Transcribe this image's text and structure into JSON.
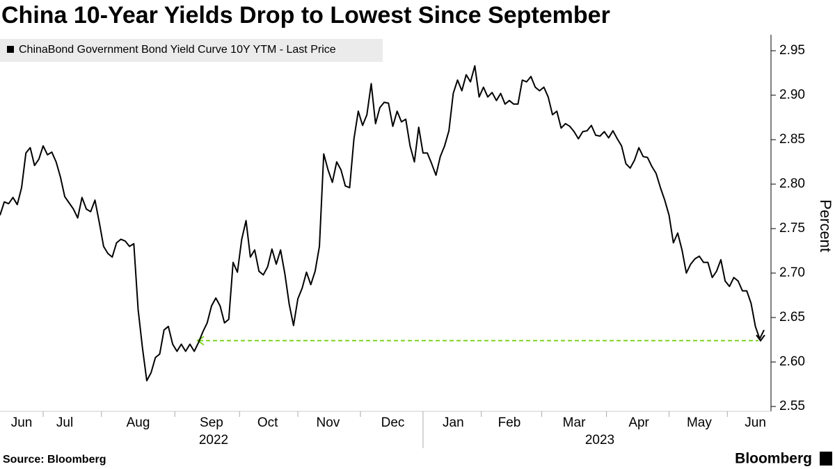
{
  "chart_data": {
    "type": "line",
    "title": "China 10-Year Yields Drop to Lowest Since September",
    "y_label": "Percent",
    "source": "Source: Bloomberg",
    "brand": "Bloomberg",
    "year_labels": [
      "2022",
      "2023"
    ],
    "series": [
      {
        "name": "ChinaBond Government Bond Yield Curve 10Y YTM - Last Price",
        "color": "#000000",
        "values": [
          2.765,
          2.78,
          2.778,
          2.785,
          2.777,
          2.796,
          2.835,
          2.841,
          2.821,
          2.828,
          2.843,
          2.833,
          2.836,
          2.825,
          2.808,
          2.786,
          2.779,
          2.772,
          2.762,
          2.785,
          2.772,
          2.769,
          2.782,
          2.757,
          2.73,
          2.722,
          2.718,
          2.734,
          2.738,
          2.736,
          2.73,
          2.733,
          2.659,
          2.616,
          2.579,
          2.588,
          2.605,
          2.609,
          2.636,
          2.64,
          2.62,
          2.612,
          2.62,
          2.612,
          2.62,
          2.612,
          2.622,
          2.634,
          2.644,
          2.663,
          2.672,
          2.663,
          2.644,
          2.648,
          2.712,
          2.701,
          2.738,
          2.759,
          2.718,
          2.726,
          2.702,
          2.698,
          2.707,
          2.727,
          2.71,
          2.726,
          2.699,
          2.665,
          2.641,
          2.671,
          2.683,
          2.701,
          2.687,
          2.702,
          2.73,
          2.834,
          2.816,
          2.802,
          2.825,
          2.816,
          2.798,
          2.796,
          2.851,
          2.882,
          2.866,
          2.878,
          2.913,
          2.868,
          2.886,
          2.892,
          2.891,
          2.865,
          2.882,
          2.87,
          2.873,
          2.843,
          2.825,
          2.864,
          2.835,
          2.835,
          2.823,
          2.81,
          2.831,
          2.843,
          2.86,
          2.902,
          2.917,
          2.905,
          2.923,
          2.915,
          2.933,
          2.898,
          2.909,
          2.898,
          2.903,
          2.894,
          2.902,
          2.89,
          2.894,
          2.89,
          2.89,
          2.917,
          2.915,
          2.921,
          2.909,
          2.905,
          2.909,
          2.898,
          2.878,
          2.882,
          2.863,
          2.868,
          2.865,
          2.859,
          2.851,
          2.859,
          2.86,
          2.866,
          2.855,
          2.854,
          2.859,
          2.852,
          2.86,
          2.851,
          2.843,
          2.823,
          2.818,
          2.827,
          2.841,
          2.831,
          2.83,
          2.82,
          2.812,
          2.796,
          2.782,
          2.765,
          2.734,
          2.745,
          2.726,
          2.7,
          2.71,
          2.716,
          2.719,
          2.712,
          2.712,
          2.695,
          2.702,
          2.715,
          2.691,
          2.685,
          2.695,
          2.691,
          2.68,
          2.68,
          2.666,
          2.64,
          2.626,
          2.636
        ]
      }
    ],
    "categories": [
      null,
      null,
      null,
      null,
      null,
      "Jun",
      null,
      null,
      null,
      null,
      null,
      null,
      null,
      null,
      null,
      "Jul",
      null,
      null,
      null,
      null,
      null,
      null,
      null,
      null,
      null,
      null,
      null,
      null,
      null,
      null,
      null,
      null,
      "Aug",
      null,
      null,
      null,
      null,
      null,
      null,
      null,
      null,
      null,
      null,
      null,
      null,
      null,
      null,
      null,
      null,
      "Sep",
      null,
      null,
      null,
      null,
      null,
      null,
      null,
      null,
      null,
      null,
      null,
      null,
      "Oct",
      null,
      null,
      null,
      null,
      null,
      null,
      null,
      null,
      null,
      null,
      null,
      null,
      null,
      "Nov",
      null,
      null,
      null,
      null,
      null,
      null,
      null,
      null,
      null,
      null,
      null,
      null,
      null,
      null,
      "Dec",
      null,
      null,
      null,
      null,
      null,
      null,
      null,
      null,
      null,
      null,
      null,
      null,
      null,
      "Jan",
      null,
      null,
      null,
      null,
      null,
      null,
      null,
      null,
      null,
      null,
      null,
      null,
      "Feb",
      null,
      null,
      null,
      null,
      null,
      null,
      null,
      null,
      null,
      null,
      null,
      null,
      null,
      null,
      "Mar",
      null,
      null,
      null,
      null,
      null,
      null,
      null,
      null,
      null,
      null,
      null,
      null,
      null,
      null,
      "Apr",
      null,
      null,
      null,
      null,
      null,
      null,
      null,
      null,
      null,
      null,
      null,
      null,
      null,
      "May",
      null,
      null,
      null,
      null,
      null,
      null,
      null,
      null,
      null,
      null,
      null,
      null,
      "Jun",
      null,
      null
    ],
    "reference_line": {
      "value": 2.624,
      "color": "#7ed321"
    },
    "ylim": [
      2.545,
      2.965
    ],
    "yticks": [
      2.55,
      2.6,
      2.65,
      2.7,
      2.75,
      2.8,
      2.85,
      2.9,
      2.95
    ],
    "ytick_labels": [
      "2.55",
      "2.60",
      "2.65",
      "2.70",
      "2.75",
      "2.80",
      "2.85",
      "2.90",
      "2.95"
    ]
  }
}
